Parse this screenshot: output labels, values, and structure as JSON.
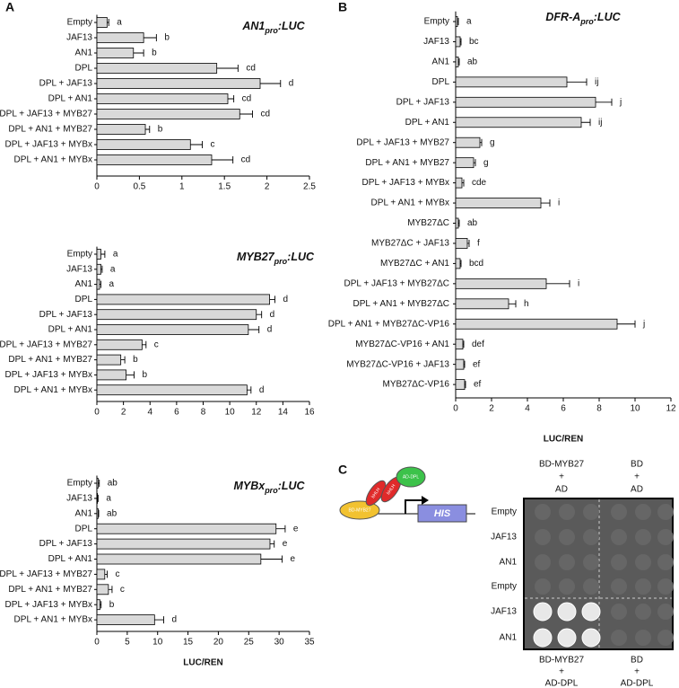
{
  "panels": [
    "A",
    "B",
    "C"
  ],
  "chart_data": [
    {
      "type": "bar",
      "orientation": "horizontal",
      "title": [
        "AN1",
        "pro",
        ":LUC"
      ],
      "color": "#d9d9d9",
      "categories": [
        "Empty",
        "JAF13",
        "AN1",
        "DPL",
        "DPL + JAF13",
        "DPL + AN1",
        "DPL + JAF13 + MYB27",
        "DPL + AN1 + MYB27",
        "DPL + JAF13 + MYBx",
        "DPL + AN1 + MYBx"
      ],
      "values": [
        0.12,
        0.55,
        0.43,
        1.41,
        1.92,
        1.54,
        1.68,
        0.57,
        1.1,
        1.35
      ],
      "errors": [
        0.02,
        0.15,
        0.12,
        0.25,
        0.24,
        0.07,
        0.15,
        0.05,
        0.14,
        0.25
      ],
      "letters": [
        "a",
        "b",
        "b",
        "cd",
        "d",
        "cd",
        "cd",
        "b",
        "c",
        "cd"
      ],
      "xlim": [
        0,
        2.5
      ],
      "xticks": [
        0,
        0.5,
        1,
        1.5,
        2,
        2.5
      ]
    },
    {
      "type": "bar",
      "orientation": "horizontal",
      "title": [
        "MYB27",
        "pro",
        ":LUC"
      ],
      "color": "#d9d9d9",
      "categories": [
        "Empty",
        "JAF13",
        "AN1",
        "DPL",
        "DPL + JAF13",
        "DPL + AN1",
        "DPL + JAF13 + MYB27",
        "DPL + AN1 + MYB27",
        "DPL + JAF13 + MYBx",
        "DPL + AN1 + MYBx"
      ],
      "values": [
        0.3,
        0.3,
        0.2,
        13,
        12,
        11.4,
        3.4,
        1.8,
        2.2,
        11.3
      ],
      "errors": [
        0.3,
        0.1,
        0.1,
        0.4,
        0.4,
        0.8,
        0.3,
        0.3,
        0.6,
        0.3
      ],
      "letters": [
        "a",
        "a",
        "a",
        "d",
        "d",
        "d",
        "c",
        "b",
        "b",
        "d"
      ],
      "xlim": [
        0,
        16
      ],
      "xticks": [
        0,
        2,
        4,
        6,
        8,
        10,
        12,
        14,
        16
      ]
    },
    {
      "type": "bar",
      "orientation": "horizontal",
      "title": [
        "MYBx",
        "pro",
        ":LUC"
      ],
      "color": "#d9d9d9",
      "categories": [
        "Empty",
        "JAF13",
        "AN1",
        "DPL",
        "DPL + JAF13",
        "DPL + AN1",
        "DPL + JAF13 + MYB27",
        "DPL + AN1 + MYB27",
        "DPL + JAF13 + MYBx",
        "DPL + AN1 + MYBx"
      ],
      "values": [
        0.2,
        0.1,
        0.2,
        29.5,
        28.5,
        27,
        1.3,
        1.9,
        0.5,
        9.5
      ],
      "errors": [
        0.2,
        0.1,
        0.1,
        1.5,
        0.7,
        3.5,
        0.4,
        0.6,
        0.2,
        1.5
      ],
      "letters": [
        "ab",
        "a",
        "ab",
        "e",
        "e",
        "e",
        "c",
        "c",
        "b",
        "d"
      ],
      "xlim": [
        0,
        35
      ],
      "xticks": [
        0,
        5,
        10,
        15,
        20,
        25,
        30,
        35
      ],
      "xlabel": "LUC/REN"
    },
    {
      "type": "bar",
      "orientation": "horizontal",
      "title": [
        "DFR-A",
        "pro",
        ":LUC"
      ],
      "color": "#d9d9d9",
      "categories": [
        "Empty",
        "JAF13",
        "AN1",
        "DPL",
        "DPL + JAF13",
        "DPL + AN1",
        "DPL + JAF13 + MYB27",
        "DPL + AN1 + MYB27",
        "DPL + JAF13 + MYBx",
        "DPL + AN1 + MYBx",
        "MYB27ΔC",
        "MYB27ΔC + JAF13",
        "MYB27ΔC + AN1",
        "DPL + JAF13 + MYB27ΔC",
        "DPL + AN1 + MYB27ΔC",
        "DPL + AN1 + MYB27ΔC-VP16",
        "MYB27ΔC-VP16 + AN1",
        "MYB27ΔC-VP16 + JAF13",
        "MYB27ΔC-VP16"
      ],
      "values": [
        0.1,
        0.25,
        0.15,
        6.2,
        7.8,
        7.0,
        1.35,
        1.0,
        0.35,
        4.75,
        0.15,
        0.65,
        0.25,
        5.05,
        2.95,
        9.0,
        0.4,
        0.45,
        0.5
      ],
      "errors": [
        0.05,
        0.05,
        0.05,
        1.1,
        0.9,
        0.5,
        0.1,
        0.1,
        0.1,
        0.5,
        0.05,
        0.1,
        0.05,
        1.3,
        0.4,
        1.0,
        0.05,
        0.05,
        0.05
      ],
      "letters": [
        "a",
        "bc",
        "ab",
        "ij",
        "j",
        "ij",
        "g",
        "g",
        "cde",
        "i",
        "ab",
        "f",
        "bcd",
        "i",
        "h",
        "j",
        "def",
        "ef",
        "ef"
      ],
      "xlim": [
        0,
        12
      ],
      "xticks": [
        0,
        2,
        4,
        6,
        8,
        10,
        12
      ],
      "xlabel": "LUC/REN"
    }
  ],
  "panel_c": {
    "columns_top": [
      [
        "BD-MYB27",
        "+",
        "AD"
      ],
      [
        "BD",
        "+",
        "AD"
      ]
    ],
    "columns_bottom": [
      [
        "BD-MYB27",
        "+",
        "AD-DPL"
      ],
      [
        "BD",
        "+",
        "AD-DPL"
      ]
    ],
    "rows": [
      "Empty",
      "JAF13",
      "AN1",
      "Empty",
      "JAF13",
      "AN1"
    ],
    "diagram": {
      "bd": "BD-MYB27",
      "bhlh": [
        "bHLH",
        "bHLH"
      ],
      "ad": "AD-DPL",
      "reporter": "HIS"
    }
  }
}
